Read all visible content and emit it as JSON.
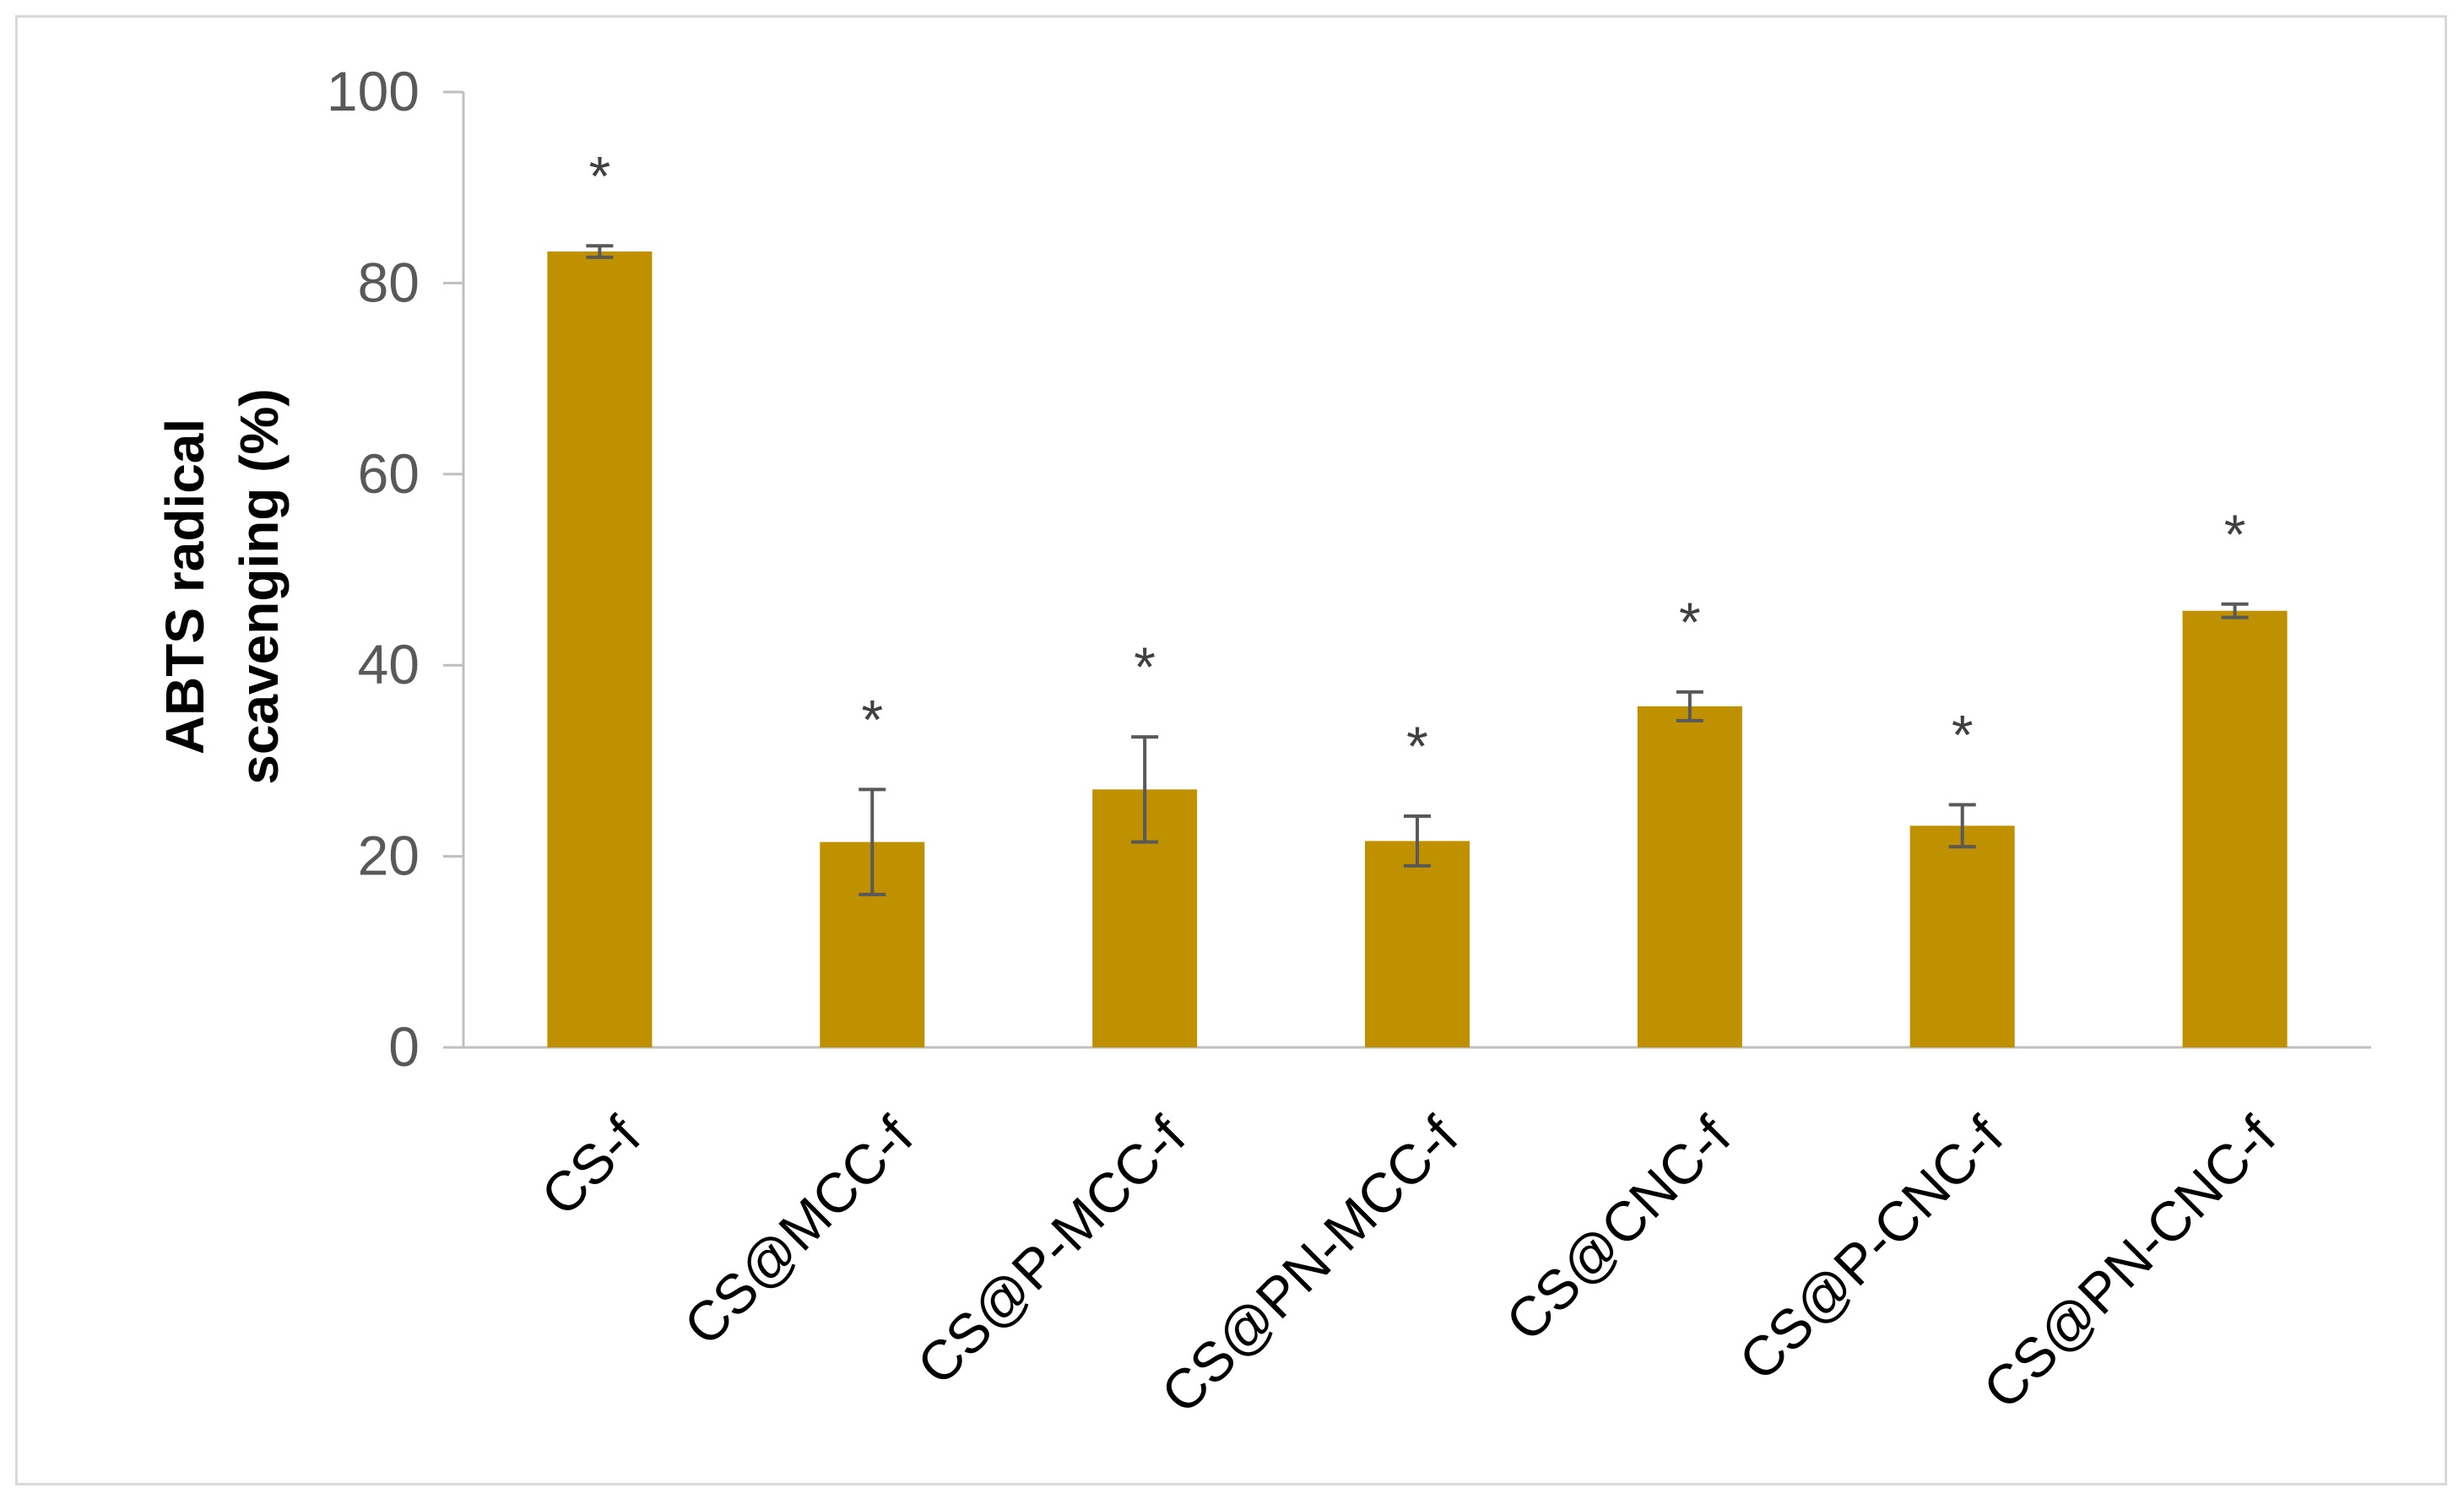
{
  "chart_data": {
    "type": "bar",
    "title": "",
    "xlabel": "",
    "ylabel_lines": [
      "ABTS radical",
      "scavenging (%)"
    ],
    "ylim": [
      0,
      100
    ],
    "yticks": [
      0,
      20,
      40,
      60,
      80,
      100
    ],
    "grid": false,
    "legend": "none",
    "bar_color": "#bf9000",
    "error_color": "#595959",
    "categories": [
      "CS-f",
      "CS@MCC-f",
      "CS@P-MCC-f",
      "CS@PN-MCC-f",
      "CS@CNC-f",
      "CS@P-CNC-f",
      "CS@PN-CNC-f"
    ],
    "values": [
      83.3,
      21.5,
      27.0,
      21.6,
      35.7,
      23.2,
      45.7
    ],
    "errors": [
      0.6,
      5.5,
      5.5,
      2.6,
      1.5,
      2.2,
      0.7
    ],
    "annotations": [
      "*",
      "*",
      "*",
      "*",
      "*",
      "*",
      "*"
    ]
  }
}
